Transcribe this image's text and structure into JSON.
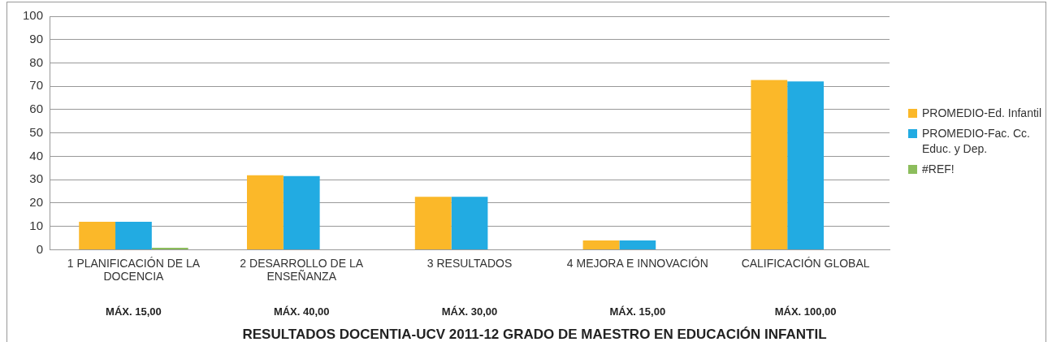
{
  "chart_data": {
    "type": "bar",
    "title": "RESULTADOS DOCENTIA-UCV 2011-12 GRADO DE MAESTRO EN EDUCACIÓN INFANTIL",
    "categories": [
      "1 PLANIFICACIÓN DE LA DOCENCIA",
      "2 DESARROLLO DE LA ENSEÑANZA",
      "3 RESULTADOS",
      "4 MEJORA E INNOVACIÓN",
      "CALIFICACIÓN GLOBAL"
    ],
    "series": [
      {
        "name": "PROMEDIO-Ed. Infantil",
        "color": "#fbb829",
        "values": [
          12,
          31.9,
          22.7,
          4,
          72.7
        ]
      },
      {
        "name": "PROMEDIO-Fac. Cc. Educ. y Dep.",
        "color": "#22abe2",
        "values": [
          12,
          31.5,
          22.7,
          4,
          72.1
        ]
      },
      {
        "name": "#REF!",
        "color": "#8cbd5c",
        "values": [
          0.8,
          null,
          null,
          null,
          null
        ]
      }
    ],
    "ylim": [
      0,
      100
    ],
    "yticks": [
      0,
      10,
      20,
      30,
      40,
      50,
      60,
      70,
      80,
      90,
      100
    ],
    "grid": "y",
    "legend": "right",
    "annotations": [
      "MÁX. 15,00",
      "MÁX. 40,00",
      "MÁX. 30,00",
      "MÁX. 15,00",
      "MÁX. 100,00"
    ]
  }
}
